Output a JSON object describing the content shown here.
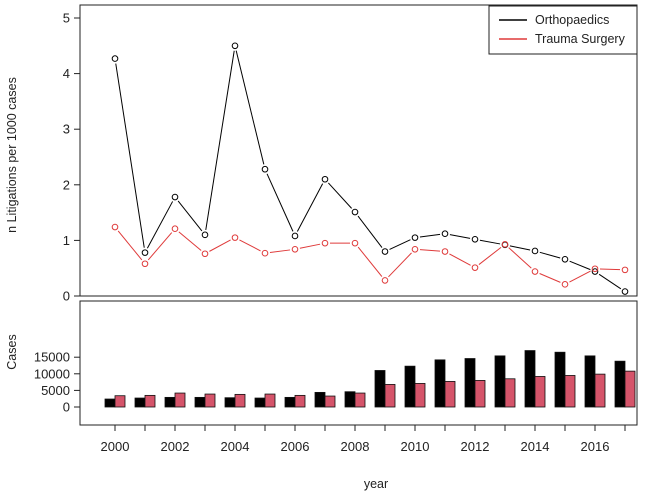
{
  "chart_data": [
    {
      "type": "line",
      "title": "",
      "xlabel": "",
      "ylabel": "n Litigations per 1000 cases",
      "ylim": [
        0,
        5
      ],
      "yticks": [
        0,
        1,
        2,
        3,
        4,
        5
      ],
      "legend_position": "top-right",
      "x": [
        2000,
        2001,
        2002,
        2003,
        2004,
        2005,
        2006,
        2007,
        2008,
        2009,
        2010,
        2011,
        2012,
        2013,
        2014,
        2015,
        2016,
        2017
      ],
      "series": [
        {
          "name": "Orthopaedics",
          "color": "#000000",
          "values": [
            4.27,
            0.78,
            1.78,
            1.1,
            4.5,
            2.28,
            1.08,
            2.1,
            1.51,
            0.8,
            1.05,
            1.12,
            1.02,
            0.92,
            0.81,
            0.66,
            0.44,
            0.08
          ]
        },
        {
          "name": "Trauma Surgery",
          "color": "#df3a3a",
          "values": [
            1.24,
            0.58,
            1.21,
            0.76,
            1.05,
            0.77,
            0.84,
            0.95,
            0.95,
            0.28,
            0.84,
            0.8,
            0.51,
            0.93,
            0.44,
            0.21,
            0.49,
            0.47
          ]
        }
      ]
    },
    {
      "type": "bar",
      "title": "",
      "xlabel": "year",
      "ylabel": "Cases",
      "ylim": [
        0,
        18000
      ],
      "yticks": [
        0,
        5000,
        10000,
        15000
      ],
      "categories": [
        2000,
        2001,
        2002,
        2003,
        2004,
        2005,
        2006,
        2007,
        2008,
        2009,
        2010,
        2011,
        2012,
        2013,
        2014,
        2015,
        2016,
        2017
      ],
      "xtick_labels": [
        "2000",
        "2002",
        "2004",
        "2006",
        "2008",
        "2010",
        "2012",
        "2014",
        "2016"
      ],
      "series": [
        {
          "name": "Orthopaedics",
          "color": "#000000",
          "values": [
            2400,
            2700,
            2900,
            2900,
            2800,
            2700,
            2900,
            4400,
            4600,
            11000,
            12300,
            14200,
            14600,
            15400,
            17000,
            16500,
            15400,
            13800
          ]
        },
        {
          "name": "Trauma Surgery",
          "color": "#d5546a",
          "values": [
            3400,
            3500,
            4200,
            3900,
            3800,
            3900,
            3500,
            3300,
            4200,
            6800,
            7100,
            7700,
            8000,
            8500,
            9200,
            9500,
            9900,
            10800
          ]
        }
      ]
    }
  ]
}
